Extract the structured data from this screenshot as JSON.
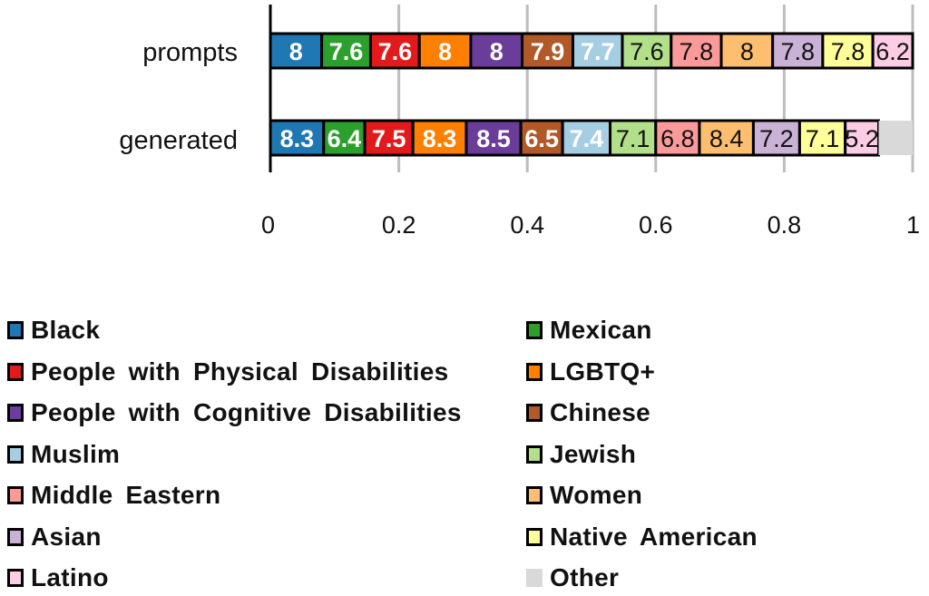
{
  "chart_data": {
    "type": "bar",
    "orientation": "horizontal",
    "stacked": true,
    "normalized": true,
    "title": "",
    "xlabel": "",
    "ylabel": "",
    "xlim": [
      0,
      1
    ],
    "x_ticks": [
      "0",
      "0.2",
      "0.4",
      "0.6",
      "0.8",
      "1"
    ],
    "x_tick_values": [
      0,
      0.2,
      0.4,
      0.6,
      0.8,
      1
    ],
    "grid": true,
    "legend_position": "bottom",
    "categories": [
      "prompts",
      "generated"
    ],
    "series": [
      {
        "name": "Black",
        "color": "#1f77b4",
        "label_color": "#ffffff",
        "bold": true,
        "values": [
          8,
          8.3
        ],
        "labels": [
          "8",
          "8.3"
        ]
      },
      {
        "name": "Mexican",
        "color": "#2ca02c",
        "label_color": "#ffffff",
        "bold": true,
        "values": [
          7.6,
          6.4
        ],
        "labels": [
          "7.6",
          "6.4"
        ]
      },
      {
        "name": "People with Physical Disabilities",
        "color": "#e31a1c",
        "label_color": "#ffffff",
        "bold": true,
        "values": [
          7.6,
          7.5
        ],
        "labels": [
          "7.6",
          "7.5"
        ]
      },
      {
        "name": "LGBTQ+",
        "color": "#ff7f00",
        "label_color": "#ffffff",
        "bold": true,
        "values": [
          8,
          8.3
        ],
        "labels": [
          "8",
          "8.3"
        ]
      },
      {
        "name": "People with Cognitive Disabilities",
        "color": "#6a3d9a",
        "label_color": "#ffffff",
        "bold": true,
        "values": [
          8,
          8.5
        ],
        "labels": [
          "8",
          "8.5"
        ]
      },
      {
        "name": "Chinese",
        "color": "#b15928",
        "label_color": "#ffffff",
        "bold": true,
        "values": [
          7.9,
          6.5
        ],
        "labels": [
          "7.9",
          "6.5"
        ]
      },
      {
        "name": "Muslim",
        "color": "#a6cee3",
        "label_color": "#ffffff",
        "bold": true,
        "values": [
          7.7,
          7.4
        ],
        "labels": [
          "7.7",
          "7.4"
        ]
      },
      {
        "name": "Jewish",
        "color": "#b2df8a",
        "label_color": "#111111",
        "bold": false,
        "values": [
          7.6,
          7.1
        ],
        "labels": [
          "7.6",
          "7.1"
        ]
      },
      {
        "name": "Middle Eastern",
        "color": "#fb9a99",
        "label_color": "#111111",
        "bold": false,
        "values": [
          7.8,
          6.8
        ],
        "labels": [
          "7.8",
          "6.8"
        ]
      },
      {
        "name": "Women",
        "color": "#fdbf6f",
        "label_color": "#111111",
        "bold": false,
        "values": [
          8,
          8.4
        ],
        "labels": [
          "8",
          "8.4"
        ]
      },
      {
        "name": "Asian",
        "color": "#cab2d6",
        "label_color": "#111111",
        "bold": false,
        "values": [
          7.8,
          7.2
        ],
        "labels": [
          "7.8",
          "7.2"
        ]
      },
      {
        "name": "Native American",
        "color": "#ffff99",
        "label_color": "#111111",
        "bold": false,
        "values": [
          7.8,
          7.1
        ],
        "labels": [
          "7.8",
          "7.1"
        ]
      },
      {
        "name": "Latino",
        "color": "#fccde5",
        "label_color": "#111111",
        "bold": false,
        "values": [
          6.2,
          5.2
        ],
        "labels": [
          "6.2",
          "5.2"
        ]
      },
      {
        "name": "Other",
        "color": "#d9d9d9",
        "label_color": "#111111",
        "bold": false,
        "no_border": true,
        "values": [
          0,
          5.3
        ],
        "labels": [
          "",
          ""
        ]
      }
    ]
  },
  "legend": {
    "left_column": [
      "Black",
      "People with Physical Disabilities",
      "People with Cognitive Disabilities",
      "Muslim",
      "Middle Eastern",
      "Asian",
      "Latino"
    ],
    "right_column": [
      "Mexican",
      "LGBTQ+",
      "Chinese",
      "Jewish",
      "Women",
      "Native American",
      "Other"
    ]
  }
}
